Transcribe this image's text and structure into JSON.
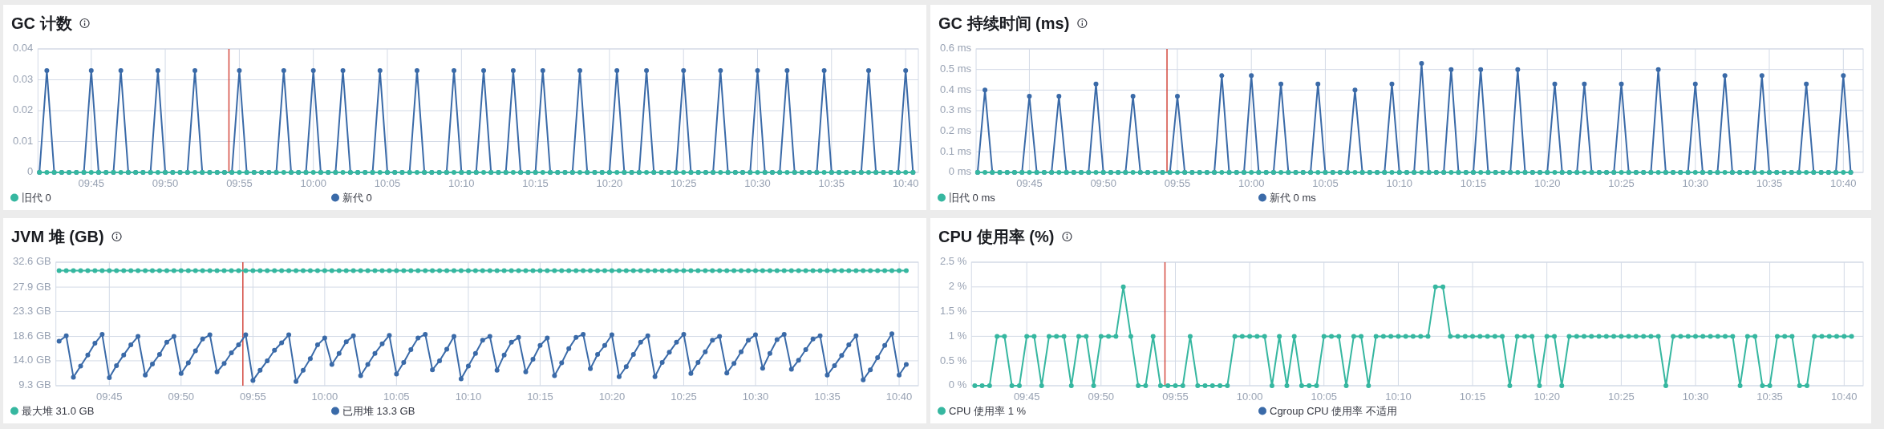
{
  "chart_data": [
    {
      "type": "line",
      "title": "GC 计数",
      "grid": true,
      "legend": "bottom",
      "marker": "circle",
      "line_style": "solid",
      "x": [
        9.6917,
        9.7,
        9.7083,
        9.7167,
        9.725,
        9.7333,
        9.7417,
        9.75,
        9.7583,
        9.7667,
        9.775,
        9.7833,
        9.7917,
        9.8,
        9.8083,
        9.8167,
        9.825,
        9.8333,
        9.8417,
        9.85,
        9.8583,
        9.8667,
        9.875,
        9.8833,
        9.8917,
        9.9,
        9.9083,
        9.9167,
        9.925,
        9.9333,
        9.9417,
        9.95,
        9.9583,
        9.9667,
        9.975,
        9.9833,
        9.9917,
        10,
        10.0083,
        10.0167,
        10.025,
        10.0333,
        10.0417,
        10.05,
        10.0583,
        10.0667,
        10.075,
        10.0833,
        10.0917,
        10.1,
        10.1083,
        10.1167,
        10.125,
        10.1333,
        10.1417,
        10.15,
        10.1583,
        10.1667,
        10.175,
        10.1833,
        10.1917,
        10.2,
        10.2083,
        10.2167,
        10.225,
        10.2333,
        10.2417,
        10.25,
        10.2583,
        10.2667,
        10.275,
        10.2833,
        10.2917,
        10.3,
        10.3083,
        10.3167,
        10.325,
        10.3333,
        10.3417,
        10.35,
        10.3583,
        10.3667,
        10.375,
        10.3833,
        10.3917,
        10.4,
        10.4083,
        10.4167,
        10.425,
        10.4333,
        10.4417,
        10.45,
        10.4583,
        10.4667,
        10.475,
        10.4833,
        10.4917,
        10.5,
        10.5083,
        10.5167,
        10.525,
        10.5333,
        10.5417,
        10.55,
        10.5583,
        10.5667,
        10.575,
        10.5833,
        10.5917,
        10.6,
        10.6083,
        10.6167,
        10.625,
        10.6333,
        10.6417,
        10.65,
        10.6583,
        10.6667,
        10.675
      ],
      "xlim": [
        9.69,
        10.681
      ],
      "xticks": [
        {
          "value": 9.75,
          "label": "09:45"
        },
        {
          "value": 9.8333,
          "label": "09:50"
        },
        {
          "value": 9.9167,
          "label": "09:55"
        },
        {
          "value": 10,
          "label": "10:00"
        },
        {
          "value": 10.0833,
          "label": "10:05"
        },
        {
          "value": 10.1667,
          "label": "10:10"
        },
        {
          "value": 10.25,
          "label": "10:15"
        },
        {
          "value": 10.3333,
          "label": "10:20"
        },
        {
          "value": 10.4167,
          "label": "10:25"
        },
        {
          "value": 10.5,
          "label": "10:30"
        },
        {
          "value": 10.5833,
          "label": "10:35"
        },
        {
          "value": 10.6667,
          "label": "10:40"
        }
      ],
      "ylim": [
        0,
        0.04
      ],
      "yticks": [
        0,
        0.01,
        0.02,
        0.03,
        0.04
      ],
      "ref_lines": [
        {
          "axis": "x",
          "value": 9.905,
          "color": "#d4493f"
        }
      ],
      "series": [
        {
          "name": "旧代 0",
          "color": "#36b7a0",
          "values": [
            0,
            0,
            0,
            0,
            0,
            0,
            0,
            0,
            0,
            0,
            0,
            0,
            0,
            0,
            0,
            0,
            0,
            0,
            0,
            0,
            0,
            0,
            0,
            0,
            0,
            0,
            0,
            0,
            0,
            0,
            0,
            0,
            0,
            0,
            0,
            0,
            0,
            0,
            0,
            0,
            0,
            0,
            0,
            0,
            0,
            0,
            0,
            0,
            0,
            0,
            0,
            0,
            0,
            0,
            0,
            0,
            0,
            0,
            0,
            0,
            0,
            0,
            0,
            0,
            0,
            0,
            0,
            0,
            0,
            0,
            0,
            0,
            0,
            0,
            0,
            0,
            0,
            0,
            0,
            0,
            0,
            0,
            0,
            0,
            0,
            0,
            0,
            0,
            0,
            0,
            0,
            0,
            0,
            0,
            0,
            0,
            0,
            0,
            0,
            0,
            0,
            0,
            0,
            0,
            0,
            0,
            0,
            0,
            0,
            0,
            0,
            0,
            0,
            0,
            0,
            0,
            0,
            0,
            0
          ]
        },
        {
          "name": "新代 0",
          "color": "#3a6aa8",
          "values": [
            0,
            0.033,
            0,
            0,
            0,
            0,
            0,
            0.033,
            0,
            0,
            0,
            0.033,
            0,
            0,
            0,
            0,
            0.033,
            0,
            0,
            0,
            0,
            0.033,
            0,
            0,
            0,
            0,
            0,
            0.033,
            0,
            0,
            0,
            0,
            0,
            0.033,
            0,
            0,
            0,
            0.033,
            0,
            0,
            0,
            0.033,
            0,
            0,
            0,
            0,
            0.033,
            0,
            0,
            0,
            0,
            0.033,
            0,
            0,
            0,
            0,
            0.033,
            0,
            0,
            0,
            0.033,
            0,
            0,
            0,
            0.033,
            0,
            0,
            0,
            0.033,
            0,
            0,
            0,
            0,
            0.033,
            0,
            0,
            0,
            0,
            0.033,
            0,
            0,
            0,
            0.033,
            0,
            0,
            0,
            0,
            0.033,
            0,
            0,
            0,
            0,
            0.033,
            0,
            0,
            0,
            0,
            0.033,
            0,
            0,
            0,
            0.033,
            0,
            0,
            0,
            0,
            0.033,
            0,
            0,
            0,
            0,
            0,
            0.033,
            0,
            0,
            0,
            0,
            0.033,
            0
          ]
        }
      ]
    },
    {
      "type": "line",
      "title": "GC 持续时间 (ms)",
      "grid": true,
      "legend": "bottom",
      "marker": "circle",
      "line_style": "solid",
      "x": [
        9.6917,
        9.7,
        9.7083,
        9.7167,
        9.725,
        9.7333,
        9.7417,
        9.75,
        9.7583,
        9.7667,
        9.775,
        9.7833,
        9.7917,
        9.8,
        9.8083,
        9.8167,
        9.825,
        9.8333,
        9.8417,
        9.85,
        9.8583,
        9.8667,
        9.875,
        9.8833,
        9.8917,
        9.9,
        9.9083,
        9.9167,
        9.925,
        9.9333,
        9.9417,
        9.95,
        9.9583,
        9.9667,
        9.975,
        9.9833,
        9.9917,
        10,
        10.0083,
        10.0167,
        10.025,
        10.0333,
        10.0417,
        10.05,
        10.0583,
        10.0667,
        10.075,
        10.0833,
        10.0917,
        10.1,
        10.1083,
        10.1167,
        10.125,
        10.1333,
        10.1417,
        10.15,
        10.1583,
        10.1667,
        10.175,
        10.1833,
        10.1917,
        10.2,
        10.2083,
        10.2167,
        10.225,
        10.2333,
        10.2417,
        10.25,
        10.2583,
        10.2667,
        10.275,
        10.2833,
        10.2917,
        10.3,
        10.3083,
        10.3167,
        10.325,
        10.3333,
        10.3417,
        10.35,
        10.3583,
        10.3667,
        10.375,
        10.3833,
        10.3917,
        10.4,
        10.4083,
        10.4167,
        10.425,
        10.4333,
        10.4417,
        10.45,
        10.4583,
        10.4667,
        10.475,
        10.4833,
        10.4917,
        10.5,
        10.5083,
        10.5167,
        10.525,
        10.5333,
        10.5417,
        10.55,
        10.5583,
        10.5667,
        10.575,
        10.5833,
        10.5917,
        10.6,
        10.6083,
        10.6167,
        10.625,
        10.6333,
        10.6417,
        10.65,
        10.6583,
        10.6667,
        10.675
      ],
      "xlim": [
        9.69,
        10.689
      ],
      "xticks": [
        {
          "value": 9.75,
          "label": "09:45"
        },
        {
          "value": 9.8333,
          "label": "09:50"
        },
        {
          "value": 9.9167,
          "label": "09:55"
        },
        {
          "value": 10,
          "label": "10:00"
        },
        {
          "value": 10.0833,
          "label": "10:05"
        },
        {
          "value": 10.1667,
          "label": "10:10"
        },
        {
          "value": 10.25,
          "label": "10:15"
        },
        {
          "value": 10.3333,
          "label": "10:20"
        },
        {
          "value": 10.4167,
          "label": "10:25"
        },
        {
          "value": 10.5,
          "label": "10:30"
        },
        {
          "value": 10.5833,
          "label": "10:35"
        },
        {
          "value": 10.6667,
          "label": "10:40"
        }
      ],
      "ylim": [
        0,
        0.6
      ],
      "yticks": [
        {
          "value": 0,
          "label": "0 ms"
        },
        {
          "value": 0.1,
          "label": "0.1 ms"
        },
        {
          "value": 0.2,
          "label": "0.2 ms"
        },
        {
          "value": 0.3,
          "label": "0.3 ms"
        },
        {
          "value": 0.4,
          "label": "0.4 ms"
        },
        {
          "value": 0.5,
          "label": "0.5 ms"
        },
        {
          "value": 0.6,
          "label": "0.6 ms"
        }
      ],
      "ref_lines": [
        {
          "axis": "x",
          "value": 9.905,
          "color": "#d4493f"
        }
      ],
      "series": [
        {
          "name": "旧代 0 ms",
          "color": "#36b7a0",
          "values": [
            0,
            0,
            0,
            0,
            0,
            0,
            0,
            0,
            0,
            0,
            0,
            0,
            0,
            0,
            0,
            0,
            0,
            0,
            0,
            0,
            0,
            0,
            0,
            0,
            0,
            0,
            0,
            0,
            0,
            0,
            0,
            0,
            0,
            0,
            0,
            0,
            0,
            0,
            0,
            0,
            0,
            0,
            0,
            0,
            0,
            0,
            0,
            0,
            0,
            0,
            0,
            0,
            0,
            0,
            0,
            0,
            0,
            0,
            0,
            0,
            0,
            0,
            0,
            0,
            0,
            0,
            0,
            0,
            0,
            0,
            0,
            0,
            0,
            0,
            0,
            0,
            0,
            0,
            0,
            0,
            0,
            0,
            0,
            0,
            0,
            0,
            0,
            0,
            0,
            0,
            0,
            0,
            0,
            0,
            0,
            0,
            0,
            0,
            0,
            0,
            0,
            0,
            0,
            0,
            0,
            0,
            0,
            0,
            0,
            0,
            0,
            0,
            0,
            0,
            0,
            0,
            0,
            0,
            0
          ]
        },
        {
          "name": "新代 0 ms",
          "color": "#3a6aa8",
          "values": [
            0,
            0.4,
            0,
            0,
            0,
            0,
            0,
            0.37,
            0,
            0,
            0,
            0.37,
            0,
            0,
            0,
            0,
            0.43,
            0,
            0,
            0,
            0,
            0.37,
            0,
            0,
            0,
            0,
            0,
            0.37,
            0,
            0,
            0,
            0,
            0,
            0.47,
            0,
            0,
            0,
            0.47,
            0,
            0,
            0,
            0.43,
            0,
            0,
            0,
            0,
            0.43,
            0,
            0,
            0,
            0,
            0.4,
            0,
            0,
            0,
            0,
            0.43,
            0,
            0,
            0,
            0.53,
            0,
            0,
            0,
            0.5,
            0,
            0,
            0,
            0.5,
            0,
            0,
            0,
            0,
            0.5,
            0,
            0,
            0,
            0,
            0.43,
            0,
            0,
            0,
            0.43,
            0,
            0,
            0,
            0,
            0.43,
            0,
            0,
            0,
            0,
            0.5,
            0,
            0,
            0,
            0,
            0.43,
            0,
            0,
            0,
            0.47,
            0,
            0,
            0,
            0,
            0.47,
            0,
            0,
            0,
            0,
            0,
            0.43,
            0,
            0,
            0,
            0,
            0.47,
            0
          ]
        }
      ]
    },
    {
      "type": "line",
      "title": "JVM 堆 (GB)",
      "grid": true,
      "legend": "bottom",
      "marker": "circle",
      "line_style": "solid",
      "x": [
        9.6917,
        9.7,
        9.7083,
        9.7167,
        9.725,
        9.7333,
        9.7417,
        9.75,
        9.7583,
        9.7667,
        9.775,
        9.7833,
        9.7917,
        9.8,
        9.8083,
        9.8167,
        9.825,
        9.8333,
        9.8417,
        9.85,
        9.8583,
        9.8667,
        9.875,
        9.8833,
        9.8917,
        9.9,
        9.9083,
        9.9167,
        9.925,
        9.9333,
        9.9417,
        9.95,
        9.9583,
        9.9667,
        9.975,
        9.9833,
        9.9917,
        10,
        10.0083,
        10.0167,
        10.025,
        10.0333,
        10.0417,
        10.05,
        10.0583,
        10.0667,
        10.075,
        10.0833,
        10.0917,
        10.1,
        10.1083,
        10.1167,
        10.125,
        10.1333,
        10.1417,
        10.15,
        10.1583,
        10.1667,
        10.175,
        10.1833,
        10.1917,
        10.2,
        10.2083,
        10.2167,
        10.225,
        10.2333,
        10.2417,
        10.25,
        10.2583,
        10.2667,
        10.275,
        10.2833,
        10.2917,
        10.3,
        10.3083,
        10.3167,
        10.325,
        10.3333,
        10.3417,
        10.35,
        10.3583,
        10.3667,
        10.375,
        10.3833,
        10.3917,
        10.4,
        10.4083,
        10.4167,
        10.425,
        10.4333,
        10.4417,
        10.45,
        10.4583,
        10.4667,
        10.475,
        10.4833,
        10.4917,
        10.5,
        10.5083,
        10.5167,
        10.525,
        10.5333,
        10.5417,
        10.55,
        10.5583,
        10.5667,
        10.575,
        10.5833,
        10.5917,
        10.6,
        10.6083,
        10.6167,
        10.625,
        10.6333,
        10.6417,
        10.65,
        10.6583,
        10.6667,
        10.675
      ],
      "xlim": [
        9.688,
        10.689
      ],
      "xticks": [
        {
          "value": 9.75,
          "label": "09:45"
        },
        {
          "value": 9.8333,
          "label": "09:50"
        },
        {
          "value": 9.9167,
          "label": "09:55"
        },
        {
          "value": 10,
          "label": "10:00"
        },
        {
          "value": 10.0833,
          "label": "10:05"
        },
        {
          "value": 10.1667,
          "label": "10:10"
        },
        {
          "value": 10.25,
          "label": "10:15"
        },
        {
          "value": 10.3333,
          "label": "10:20"
        },
        {
          "value": 10.4167,
          "label": "10:25"
        },
        {
          "value": 10.5,
          "label": "10:30"
        },
        {
          "value": 10.5833,
          "label": "10:35"
        },
        {
          "value": 10.6667,
          "label": "10:40"
        }
      ],
      "ylim": [
        9.3,
        32.6
      ],
      "yticks": [
        {
          "value": 9.3,
          "label": "9.3 GB"
        },
        {
          "value": 14.0,
          "label": "14.0 GB"
        },
        {
          "value": 18.6,
          "label": "18.6 GB"
        },
        {
          "value": 23.3,
          "label": "23.3 GB"
        },
        {
          "value": 27.9,
          "label": "27.9 GB"
        },
        {
          "value": 32.6,
          "label": "32.6 GB"
        }
      ],
      "ref_lines": [
        {
          "axis": "x",
          "value": 9.905,
          "color": "#d4493f"
        }
      ],
      "series": [
        {
          "name": "最大堆 31.0 GB",
          "color": "#36b7a0",
          "values": [
            31,
            31,
            31,
            31,
            31,
            31,
            31,
            31,
            31,
            31,
            31,
            31,
            31,
            31,
            31,
            31,
            31,
            31,
            31,
            31,
            31,
            31,
            31,
            31,
            31,
            31,
            31,
            31,
            31,
            31,
            31,
            31,
            31,
            31,
            31,
            31,
            31,
            31,
            31,
            31,
            31,
            31,
            31,
            31,
            31,
            31,
            31,
            31,
            31,
            31,
            31,
            31,
            31,
            31,
            31,
            31,
            31,
            31,
            31,
            31,
            31,
            31,
            31,
            31,
            31,
            31,
            31,
            31,
            31,
            31,
            31,
            31,
            31,
            31,
            31,
            31,
            31,
            31,
            31,
            31,
            31,
            31,
            31,
            31,
            31,
            31,
            31,
            31,
            31,
            31,
            31,
            31,
            31,
            31,
            31,
            31,
            31,
            31,
            31,
            31,
            31,
            31,
            31,
            31,
            31,
            31,
            31,
            31,
            31,
            31,
            31,
            31,
            31,
            31,
            31,
            31,
            31,
            31,
            31
          ]
        },
        {
          "name": "已用堆 13.3 GB",
          "color": "#3a6aa8",
          "values": [
            17.7,
            18.7,
            10.9,
            13.0,
            15.1,
            17.3,
            19.0,
            10.8,
            13.1,
            15.1,
            17.0,
            18.6,
            11.3,
            13.4,
            15.2,
            17.5,
            18.6,
            11.6,
            13.6,
            15.9,
            18.1,
            18.9,
            11.9,
            13.5,
            15.5,
            17.0,
            18.9,
            10.3,
            12.2,
            14.0,
            16.0,
            17.4,
            18.9,
            10.1,
            12.2,
            14.4,
            17.0,
            18.3,
            13.3,
            15.4,
            17.6,
            18.7,
            11.2,
            13.3,
            15.4,
            17.2,
            18.8,
            11.5,
            13.7,
            16.1,
            18.3,
            19.0,
            12.3,
            14.0,
            16.2,
            18.6,
            10.6,
            13.0,
            15.4,
            17.9,
            18.6,
            12.2,
            15.1,
            17.5,
            18.4,
            11.9,
            14.3,
            16.9,
            18.3,
            11.2,
            13.6,
            16.3,
            18.4,
            19.0,
            12.5,
            15.2,
            16.9,
            18.9,
            11.0,
            12.9,
            15.2,
            17.5,
            18.7,
            11.0,
            13.7,
            15.6,
            17.5,
            19.0,
            11.6,
            13.7,
            15.7,
            17.9,
            18.6,
            11.7,
            13.5,
            15.7,
            17.9,
            18.9,
            12.6,
            15.4,
            18.0,
            19.0,
            12.4,
            14.1,
            16.1,
            18.1,
            18.7,
            11.3,
            13.1,
            15.0,
            17.0,
            18.7,
            10.4,
            12.3,
            14.6,
            16.9,
            19.1,
            11.3,
            13.3
          ]
        }
      ]
    },
    {
      "type": "line",
      "title": "CPU 使用率 (%)",
      "grid": true,
      "legend": "bottom",
      "marker": "circle",
      "line_style": "solid",
      "x": [
        9.6917,
        9.7,
        9.7083,
        9.7167,
        9.725,
        9.7333,
        9.7417,
        9.75,
        9.7583,
        9.7667,
        9.775,
        9.7833,
        9.7917,
        9.8,
        9.8083,
        9.8167,
        9.825,
        9.8333,
        9.8417,
        9.85,
        9.8583,
        9.8667,
        9.875,
        9.8833,
        9.8917,
        9.9,
        9.9083,
        9.9167,
        9.925,
        9.9333,
        9.9417,
        9.95,
        9.9583,
        9.9667,
        9.975,
        9.9833,
        9.9917,
        10,
        10.0083,
        10.0167,
        10.025,
        10.0333,
        10.0417,
        10.05,
        10.0583,
        10.0667,
        10.075,
        10.0833,
        10.0917,
        10.1,
        10.1083,
        10.1167,
        10.125,
        10.1333,
        10.1417,
        10.15,
        10.1583,
        10.1667,
        10.175,
        10.1833,
        10.1917,
        10.2,
        10.2083,
        10.2167,
        10.225,
        10.2333,
        10.2417,
        10.25,
        10.2583,
        10.2667,
        10.275,
        10.2833,
        10.2917,
        10.3,
        10.3083,
        10.3167,
        10.325,
        10.3333,
        10.3417,
        10.35,
        10.3583,
        10.3667,
        10.375,
        10.3833,
        10.3917,
        10.4,
        10.4083,
        10.4167,
        10.425,
        10.4333,
        10.4417,
        10.45,
        10.4583,
        10.4667,
        10.475,
        10.4833,
        10.4917,
        10.5,
        10.5083,
        10.5167,
        10.525,
        10.5333,
        10.5417,
        10.55,
        10.5583,
        10.5667,
        10.575,
        10.5833,
        10.5917,
        10.6,
        10.6083,
        10.6167,
        10.625,
        10.6333,
        10.6417,
        10.65,
        10.6583,
        10.6667,
        10.675
      ],
      "xlim": [
        9.688,
        10.688
      ],
      "xticks": [
        {
          "value": 9.75,
          "label": "09:45"
        },
        {
          "value": 9.8333,
          "label": "09:50"
        },
        {
          "value": 9.9167,
          "label": "09:55"
        },
        {
          "value": 10,
          "label": "10:00"
        },
        {
          "value": 10.0833,
          "label": "10:05"
        },
        {
          "value": 10.1667,
          "label": "10:10"
        },
        {
          "value": 10.25,
          "label": "10:15"
        },
        {
          "value": 10.3333,
          "label": "10:20"
        },
        {
          "value": 10.4167,
          "label": "10:25"
        },
        {
          "value": 10.5,
          "label": "10:30"
        },
        {
          "value": 10.5833,
          "label": "10:35"
        },
        {
          "value": 10.6667,
          "label": "10:40"
        }
      ],
      "ylim": [
        0,
        2.5
      ],
      "yticks": [
        {
          "value": 0,
          "label": "0 %"
        },
        {
          "value": 0.5,
          "label": "0.5 %"
        },
        {
          "value": 1,
          "label": "1 %"
        },
        {
          "value": 1.5,
          "label": "1.5 %"
        },
        {
          "value": 2,
          "label": "2 %"
        },
        {
          "value": 2.5,
          "label": "2.5 %"
        }
      ],
      "ref_lines": [
        {
          "axis": "x",
          "value": 9.905,
          "color": "#d4493f"
        }
      ],
      "series": [
        {
          "name": "CPU 使用率 1 %",
          "color": "#36b7a0",
          "values": [
            0,
            0,
            0,
            1,
            1,
            0,
            0,
            1,
            1,
            0,
            1,
            1,
            1,
            0,
            1,
            1,
            0,
            1,
            1,
            1,
            2,
            1,
            0,
            0,
            1,
            0,
            0,
            0,
            0,
            1,
            0,
            0,
            0,
            0,
            0,
            1,
            1,
            1,
            1,
            1,
            0,
            1,
            0,
            1,
            0,
            0,
            0,
            1,
            1,
            1,
            0,
            1,
            1,
            0,
            1,
            1,
            1,
            1,
            1,
            1,
            1,
            1,
            2,
            2,
            1,
            1,
            1,
            1,
            1,
            1,
            1,
            1,
            0,
            1,
            1,
            1,
            0,
            1,
            1,
            0,
            1,
            1,
            1,
            1,
            1,
            1,
            1,
            1,
            1,
            1,
            1,
            1,
            1,
            0,
            1,
            1,
            1,
            1,
            1,
            1,
            1,
            1,
            1,
            0,
            1,
            1,
            0,
            0,
            1,
            1,
            1,
            0,
            0,
            1,
            1,
            1,
            1,
            1,
            1
          ]
        },
        {
          "name": "Cgroup CPU 使用率 不适用",
          "color": "#3a6aa8",
          "values": [
            null,
            null,
            null,
            null,
            null,
            null,
            null,
            null,
            null,
            null,
            null,
            null,
            null,
            null,
            null,
            null,
            null,
            null,
            null,
            null,
            null,
            null,
            null,
            null,
            null,
            null,
            null,
            null,
            null,
            null,
            null,
            null,
            null,
            null,
            null,
            null,
            null,
            null,
            null,
            null,
            null,
            null,
            null,
            null,
            null,
            null,
            null,
            null,
            null,
            null,
            null,
            null,
            null,
            null,
            null,
            null,
            null,
            null,
            null,
            null,
            null,
            null,
            null,
            null,
            null,
            null,
            null,
            null,
            null,
            null,
            null,
            null,
            null,
            null,
            null,
            null,
            null,
            null,
            null,
            null,
            null,
            null,
            null,
            null,
            null,
            null,
            null,
            null,
            null,
            null,
            null,
            null,
            null,
            null,
            null,
            null,
            null,
            null,
            null,
            null,
            null,
            null,
            null,
            null,
            null,
            null,
            null,
            null,
            null,
            null,
            null,
            null,
            null,
            null,
            null,
            null,
            null,
            null,
            null
          ]
        }
      ]
    }
  ]
}
